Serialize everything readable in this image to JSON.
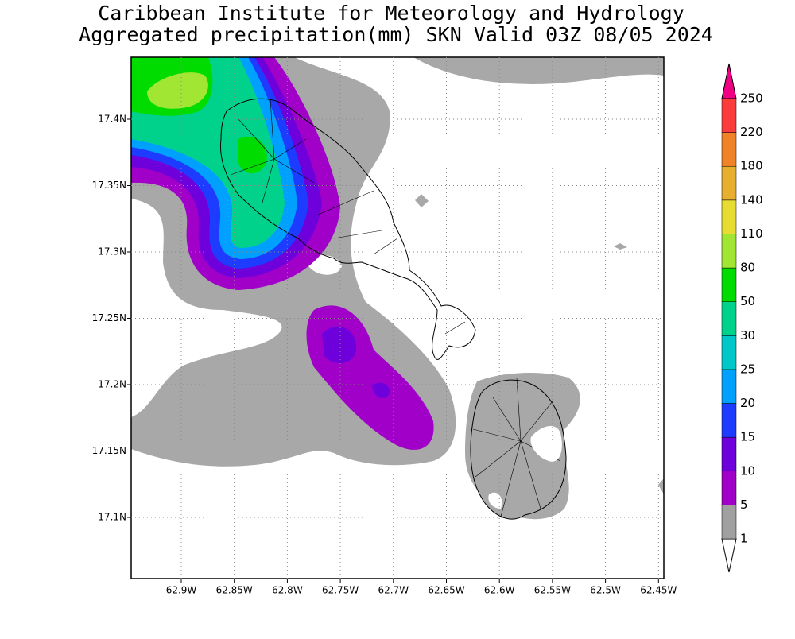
{
  "title": "Caribbean Institute for Meteorology and Hydrology",
  "subtitle": "Aggregated precipitation(mm) SKN Valid 03Z 08/05 2024",
  "map": {
    "xticks": [
      "62.9W",
      "62.85W",
      "62.8W",
      "62.75W",
      "62.7W",
      "62.65W",
      "62.6W",
      "62.55W",
      "62.5W",
      "62.45W"
    ],
    "yticks": [
      "17.4N",
      "17.35N",
      "17.3N",
      "17.25N",
      "17.2N",
      "17.15N",
      "17.1N"
    ]
  },
  "legend": {
    "levels": [
      1,
      5,
      10,
      15,
      20,
      25,
      30,
      50,
      80,
      110,
      140,
      180,
      220,
      250
    ],
    "colors": [
      "#ffffff",
      "#a0a0a0",
      "#a000c8",
      "#6e00dc",
      "#1e3cff",
      "#00a0ff",
      "#00c8c8",
      "#00d28c",
      "#00dc00",
      "#a0e632",
      "#e6dc32",
      "#e6af2d",
      "#f08228",
      "#fa3c3c",
      "#f00082"
    ]
  }
}
